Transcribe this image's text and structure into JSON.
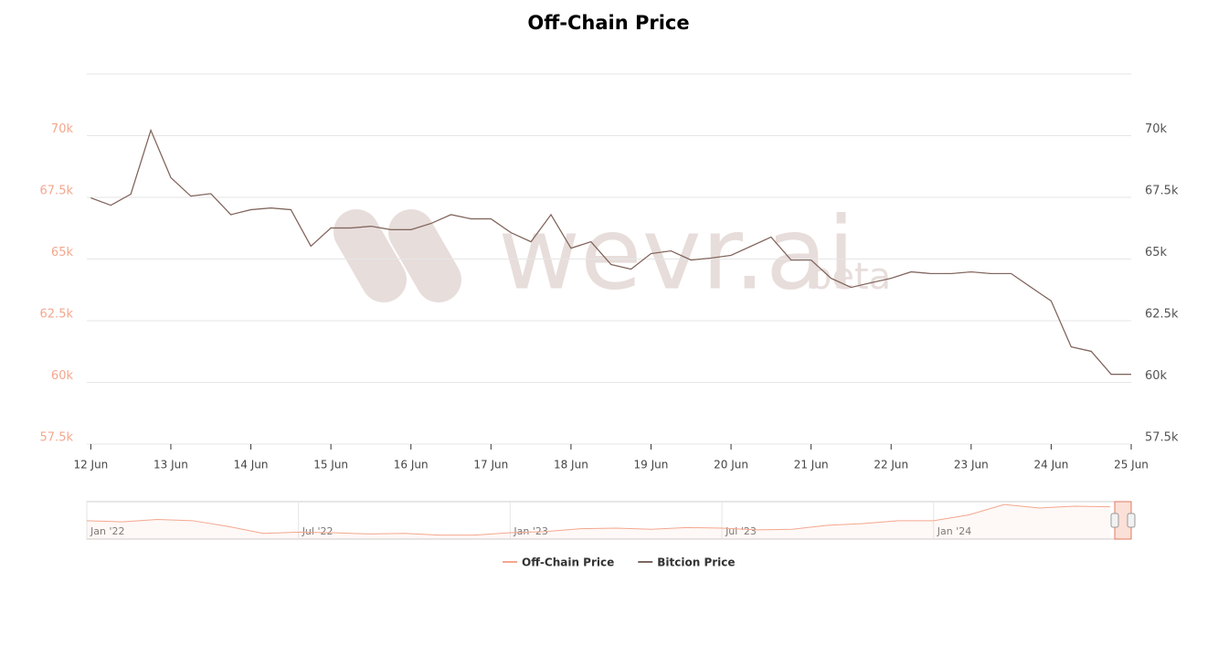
{
  "chart_data": {
    "type": "line",
    "title": "Off-Chain Price",
    "x": [
      0,
      0.25,
      0.5,
      0.75,
      1,
      1.25,
      1.5,
      1.75,
      2,
      2.25,
      2.5,
      2.75,
      3,
      3.25,
      3.5,
      3.75,
      4,
      4.25,
      4.5,
      4.75,
      5,
      5.25,
      5.5,
      5.75,
      6,
      6.25,
      6.5,
      6.75,
      7,
      7.25,
      7.5,
      7.75,
      8,
      8.25,
      8.5,
      8.75,
      9,
      9.25,
      9.5,
      9.75,
      10,
      10.25,
      10.5,
      10.75,
      11,
      11.25,
      11.5,
      11.75,
      12,
      12.25,
      12.5,
      12.75,
      13
    ],
    "series": [
      {
        "name": "Off-Chain Price",
        "color": "#f4a78e",
        "axis": "y",
        "values": [
          67480,
          67180,
          67630,
          70220,
          68300,
          67550,
          67650,
          66800,
          67000,
          67070,
          67000,
          65520,
          66260,
          66260,
          66330,
          66190,
          66190,
          66440,
          66800,
          66630,
          66630,
          66070,
          65700,
          66800,
          65440,
          65700,
          64780,
          64590,
          65220,
          65330,
          64960,
          65040,
          65150,
          65520,
          65890,
          64960,
          64960,
          64220,
          63850,
          64040,
          64220,
          64480,
          64410,
          64410,
          64480,
          64410,
          64410,
          63850,
          63300,
          61440,
          61260,
          60330,
          60330
        ]
      },
      {
        "name": "Bitcion Price",
        "color": "#7b6660",
        "axis": "y2",
        "values": [
          67480,
          67180,
          67630,
          70220,
          68300,
          67550,
          67650,
          66800,
          67000,
          67070,
          67000,
          65520,
          66260,
          66260,
          66330,
          66190,
          66190,
          66440,
          66800,
          66630,
          66630,
          66070,
          65700,
          66800,
          65440,
          65700,
          64780,
          64590,
          65220,
          65330,
          64960,
          65040,
          65150,
          65520,
          65890,
          64960,
          64960,
          64220,
          63850,
          64040,
          64220,
          64480,
          64410,
          64410,
          64480,
          64410,
          64410,
          63850,
          63300,
          61440,
          61260,
          60330,
          60330
        ]
      }
    ],
    "xlim": [
      -0.05,
      13
    ],
    "xticks": [
      {
        "value": 0,
        "label": "12 Jun"
      },
      {
        "value": 1,
        "label": "13 Jun"
      },
      {
        "value": 2,
        "label": "14 Jun"
      },
      {
        "value": 3,
        "label": "15 Jun"
      },
      {
        "value": 4,
        "label": "16 Jun"
      },
      {
        "value": 5,
        "label": "17 Jun"
      },
      {
        "value": 6,
        "label": "18 Jun"
      },
      {
        "value": 7,
        "label": "19 Jun"
      },
      {
        "value": 8,
        "label": "20 Jun"
      },
      {
        "value": 9,
        "label": "21 Jun"
      },
      {
        "value": 10,
        "label": "22 Jun"
      },
      {
        "value": 11,
        "label": "23 Jun"
      },
      {
        "value": 12,
        "label": "24 Jun"
      },
      {
        "value": 13,
        "label": "25 Jun"
      }
    ],
    "ylim": [
      57500,
      72500
    ],
    "yticks": [
      {
        "value": 57500,
        "label": "57.5k"
      },
      {
        "value": 60000,
        "label": "60k"
      },
      {
        "value": 62500,
        "label": "62.5k"
      },
      {
        "value": 65000,
        "label": "65k"
      },
      {
        "value": 67500,
        "label": "67.5k"
      },
      {
        "value": 70000,
        "label": "70k"
      }
    ],
    "y2lim": [
      57500,
      72500
    ],
    "y2ticks": [
      {
        "value": 57500,
        "label": "57.5k"
      },
      {
        "value": 60000,
        "label": "60k"
      },
      {
        "value": 62500,
        "label": "62.5k"
      },
      {
        "value": 65000,
        "label": "65k"
      },
      {
        "value": 67500,
        "label": "67.5k"
      },
      {
        "value": 70000,
        "label": "70k"
      }
    ],
    "grid": true,
    "navigator": {
      "color": "#f4a78e",
      "values": [
        42000,
        40000,
        44000,
        42000,
        32000,
        20000,
        22000,
        21000,
        19000,
        20000,
        17000,
        17000,
        21000,
        23000,
        28000,
        29000,
        27000,
        30000,
        29000,
        26000,
        27000,
        34000,
        37000,
        42000,
        42000,
        52000,
        70000,
        64000,
        67000,
        66000
      ],
      "xlim": [
        0,
        29.6
      ],
      "ylim": [
        10000,
        75000
      ],
      "xticks": [
        {
          "value": 0,
          "label": "Jan '22"
        },
        {
          "value": 6,
          "label": "Jul '22"
        },
        {
          "value": 12,
          "label": "Jan '23"
        },
        {
          "value": 18,
          "label": "Jul '23"
        },
        {
          "value": 24,
          "label": "Jan '24"
        }
      ]
    }
  },
  "watermark": "wevr.ai",
  "watermark_sub": "beta"
}
